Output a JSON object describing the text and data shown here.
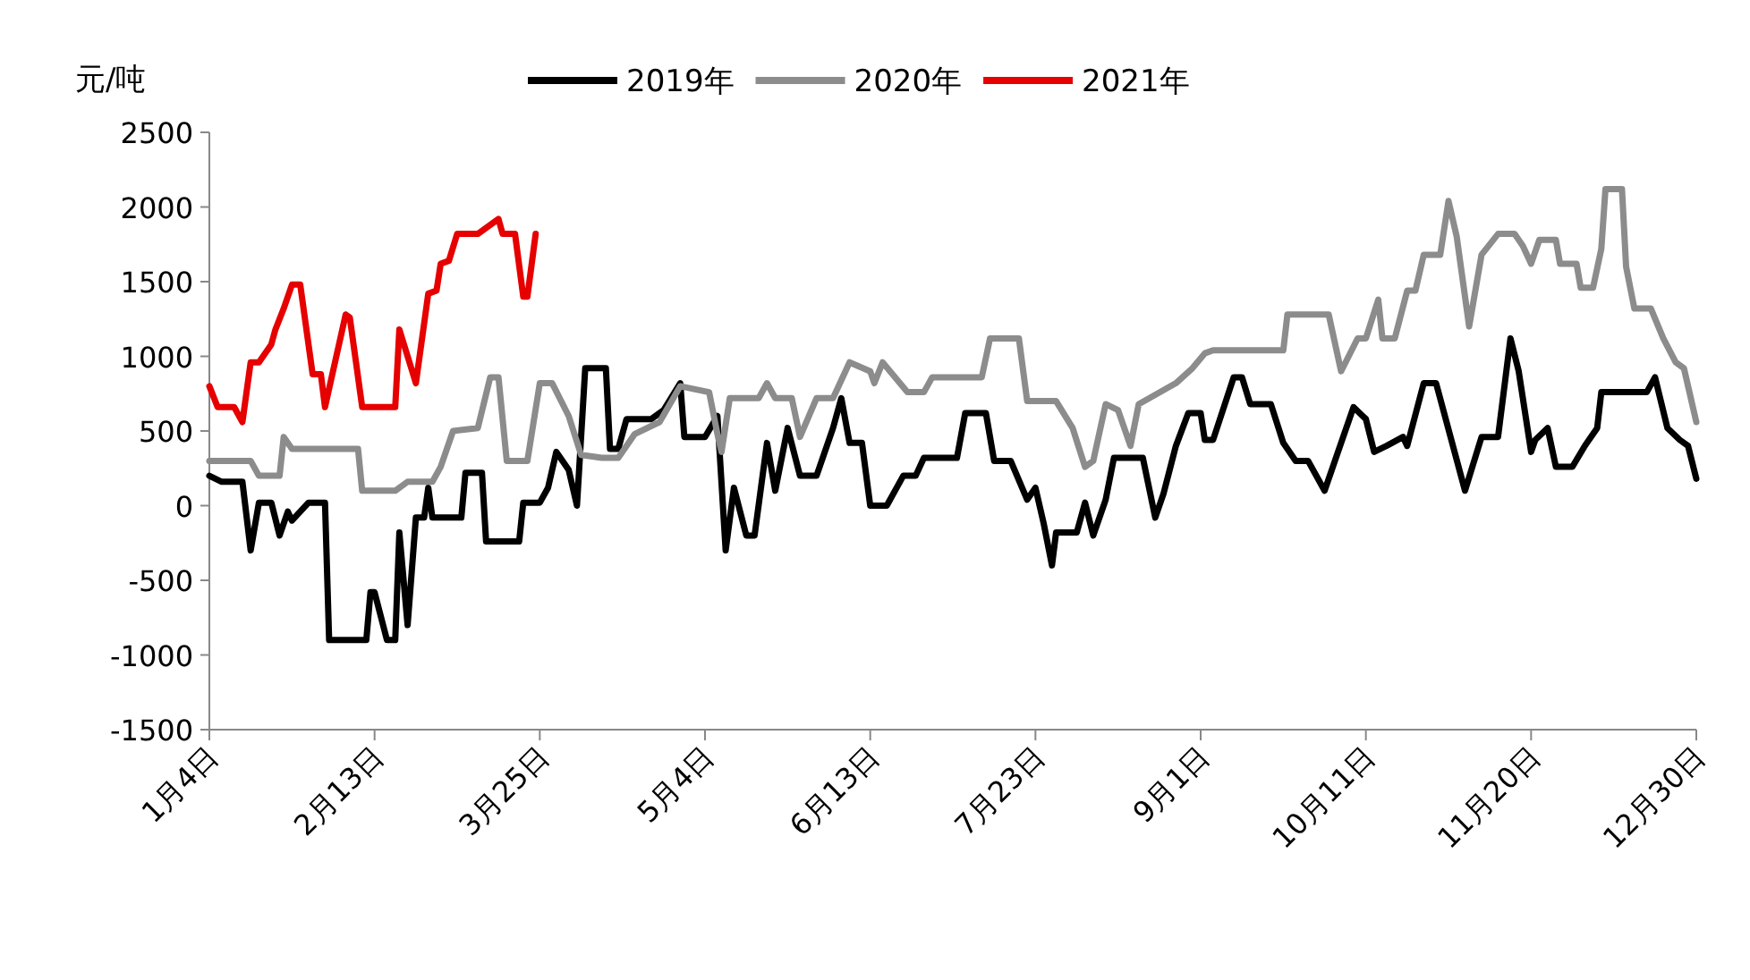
{
  "chart_data": {
    "type": "line",
    "ylabel": "元/吨",
    "legend": "top",
    "grid": false,
    "marker": "none",
    "line_style": "solid",
    "xlim": [
      "--01-04",
      "--12-30"
    ],
    "xticks": [
      {
        "value": "--01-04",
        "label": "1月4日"
      },
      {
        "value": "--02-13",
        "label": "2月13日"
      },
      {
        "value": "--03-25",
        "label": "3月25日"
      },
      {
        "value": "--05-04",
        "label": "5月4日"
      },
      {
        "value": "--06-13",
        "label": "6月13日"
      },
      {
        "value": "--07-23",
        "label": "7月23日"
      },
      {
        "value": "--09-01",
        "label": "9月1日"
      },
      {
        "value": "--10-11",
        "label": "10月11日"
      },
      {
        "value": "--11-20",
        "label": "11月20日"
      },
      {
        "value": "--12-30",
        "label": "12月30日"
      }
    ],
    "ylim": [
      -1500,
      2500
    ],
    "yticks": [
      -1500,
      -1000,
      -500,
      0,
      500,
      1000,
      1500,
      2000,
      2500
    ],
    "series": [
      {
        "name": "2019年",
        "color": "#000000",
        "x": [
          "--01-04",
          "--01-07",
          "--01-12",
          "--01-14",
          "--01-16",
          "--01-19",
          "--01-21",
          "--01-23",
          "--01-24",
          "--01-28",
          "--02-01",
          "--02-02",
          "--02-11",
          "--02-12",
          "--02-13",
          "--02-16",
          "--02-18",
          "--02-19",
          "--02-21",
          "--02-23",
          "--02-25",
          "--02-26",
          "--02-27",
          "--03-06",
          "--03-07",
          "--03-11",
          "--03-12",
          "--03-20",
          "--03-21",
          "--03-25",
          "--03-27",
          "--03-29",
          "--04-01",
          "--04-03",
          "--04-05",
          "--04-10",
          "--04-11",
          "--04-13",
          "--04-15",
          "--04-21",
          "--04-24",
          "--04-28",
          "--04-29",
          "--05-04",
          "--05-07",
          "--05-09",
          "--05-11",
          "--05-14",
          "--05-16",
          "--05-19",
          "--05-21",
          "--05-24",
          "--05-27",
          "--05-31",
          "--06-04",
          "--06-06",
          "--06-08",
          "--06-11",
          "--06-13",
          "--06-17",
          "--06-21",
          "--06-24",
          "--06-26",
          "--07-04",
          "--07-06",
          "--07-11",
          "--07-13",
          "--07-17",
          "--07-21",
          "--07-23",
          "--07-25",
          "--07-27",
          "--07-28",
          "--08-02",
          "--08-04",
          "--08-06",
          "--08-09",
          "--08-11",
          "--08-18",
          "--08-21",
          "--08-23",
          "--08-26",
          "--08-29",
          "--09-01",
          "--09-02",
          "--09-04",
          "--09-09",
          "--09-11",
          "--09-13",
          "--09-18",
          "--09-21",
          "--09-24",
          "--09-27",
          "--10-01",
          "--10-08",
          "--10-11",
          "--10-13",
          "--10-16",
          "--10-20",
          "--10-21",
          "--10-25",
          "--10-28",
          "--11-04",
          "--11-08",
          "--11-12",
          "--11-15",
          "--11-17",
          "--11-20",
          "--11-21",
          "--11-24",
          "--11-26",
          "--11-30",
          "--12-03",
          "--12-06",
          "--12-07",
          "--12-18",
          "--12-20",
          "--12-23",
          "--12-26",
          "--12-28",
          "--12-30"
        ],
        "values": [
          200,
          160,
          160,
          -300,
          20,
          20,
          -200,
          -40,
          -100,
          20,
          20,
          -900,
          -900,
          -580,
          -580,
          -900,
          -900,
          -180,
          -800,
          -80,
          -80,
          120,
          -80,
          -80,
          220,
          220,
          -240,
          -240,
          20,
          20,
          120,
          360,
          240,
          0,
          920,
          920,
          380,
          380,
          580,
          580,
          640,
          820,
          460,
          460,
          600,
          -300,
          120,
          -200,
          -200,
          420,
          100,
          520,
          200,
          200,
          520,
          720,
          420,
          420,
          0,
          0,
          200,
          200,
          320,
          320,
          620,
          620,
          300,
          300,
          40,
          120,
          -120,
          -400,
          -180,
          -180,
          20,
          -200,
          40,
          320,
          320,
          -80,
          80,
          400,
          620,
          620,
          440,
          440,
          860,
          860,
          680,
          680,
          420,
          300,
          300,
          100,
          660,
          580,
          360,
          400,
          460,
          400,
          820,
          820,
          100,
          460,
          460,
          1120,
          900,
          360,
          440,
          520,
          260,
          260,
          400,
          520,
          760,
          760,
          860,
          520,
          440,
          400,
          180
        ]
      },
      {
        "name": "2020年",
        "color": "#8c8c8c",
        "x": [
          "--01-04",
          "--01-14",
          "--01-16",
          "--01-21",
          "--01-22",
          "--01-24",
          "--02-09",
          "--02-10",
          "--02-18",
          "--02-21",
          "--02-27",
          "--03-01",
          "--03-04",
          "--03-10",
          "--03-13",
          "--03-15",
          "--03-17",
          "--03-22",
          "--03-25",
          "--03-28",
          "--04-01",
          "--04-04",
          "--04-09",
          "--04-13",
          "--04-17",
          "--04-23",
          "--04-28",
          "--05-05",
          "--05-07",
          "--05-08",
          "--05-10",
          "--05-17",
          "--05-19",
          "--05-21",
          "--05-25",
          "--05-27",
          "--05-31",
          "--06-04",
          "--06-08",
          "--06-13",
          "--06-14",
          "--06-16",
          "--06-22",
          "--06-26",
          "--06-28",
          "--07-10",
          "--07-12",
          "--07-19",
          "--07-21",
          "--07-28",
          "--08-01",
          "--08-04",
          "--08-06",
          "--08-09",
          "--08-12",
          "--08-15",
          "--08-17",
          "--08-26",
          "--08-30",
          "--09-02",
          "--09-04",
          "--09-21",
          "--09-22",
          "--10-02",
          "--10-05",
          "--10-09",
          "--10-11",
          "--10-14",
          "--10-15",
          "--10-18",
          "--10-21",
          "--10-23",
          "--10-25",
          "--10-29",
          "--10-31",
          "--11-02",
          "--11-05",
          "--11-08",
          "--11-12",
          "--11-16",
          "--11-18",
          "--11-20",
          "--11-22",
          "--11-26",
          "--11-27",
          "--12-01",
          "--12-02",
          "--12-05",
          "--12-07",
          "--12-08",
          "--12-12",
          "--12-13",
          "--12-15",
          "--12-19",
          "--12-22",
          "--12-25",
          "--12-27",
          "--12-30"
        ],
        "values": [
          300,
          300,
          200,
          200,
          460,
          380,
          380,
          100,
          100,
          160,
          160,
          260,
          500,
          520,
          860,
          860,
          300,
          300,
          820,
          820,
          600,
          340,
          320,
          320,
          480,
          560,
          800,
          760,
          480,
          360,
          720,
          720,
          820,
          720,
          720,
          460,
          720,
          720,
          960,
          900,
          820,
          960,
          760,
          760,
          860,
          860,
          1120,
          1120,
          700,
          700,
          520,
          260,
          300,
          680,
          640,
          400,
          680,
          820,
          920,
          1020,
          1040,
          1040,
          1280,
          1280,
          900,
          1120,
          1120,
          1380,
          1120,
          1120,
          1440,
          1440,
          1680,
          1680,
          2040,
          1800,
          1200,
          1680,
          1820,
          1820,
          1740,
          1620,
          1780,
          1780,
          1620,
          1620,
          1460,
          1460,
          1720,
          2120,
          2120,
          1600,
          1320,
          1320,
          1120,
          960,
          920,
          560
        ]
      },
      {
        "name": "2021年",
        "color": "#e60000",
        "x": [
          "--01-04",
          "--01-06",
          "--01-10",
          "--01-12",
          "--01-14",
          "--01-16",
          "--01-19",
          "--01-20",
          "--01-22",
          "--01-24",
          "--01-26",
          "--01-29",
          "--01-31",
          "--02-01",
          "--02-06",
          "--02-07",
          "--02-10",
          "--02-18",
          "--02-19",
          "--02-23",
          "--02-26",
          "--02-28",
          "--03-01",
          "--03-03",
          "--03-05",
          "--03-10",
          "--03-12",
          "--03-15",
          "--03-16",
          "--03-19",
          "--03-21",
          "--03-22",
          "--03-24"
        ],
        "values": [
          800,
          660,
          660,
          560,
          960,
          960,
          1080,
          1180,
          1320,
          1480,
          1480,
          880,
          880,
          660,
          1280,
          1260,
          660,
          660,
          1180,
          820,
          1420,
          1440,
          1620,
          1640,
          1820,
          1820,
          1860,
          1920,
          1820,
          1820,
          1400,
          1400,
          1820
        ]
      }
    ]
  }
}
